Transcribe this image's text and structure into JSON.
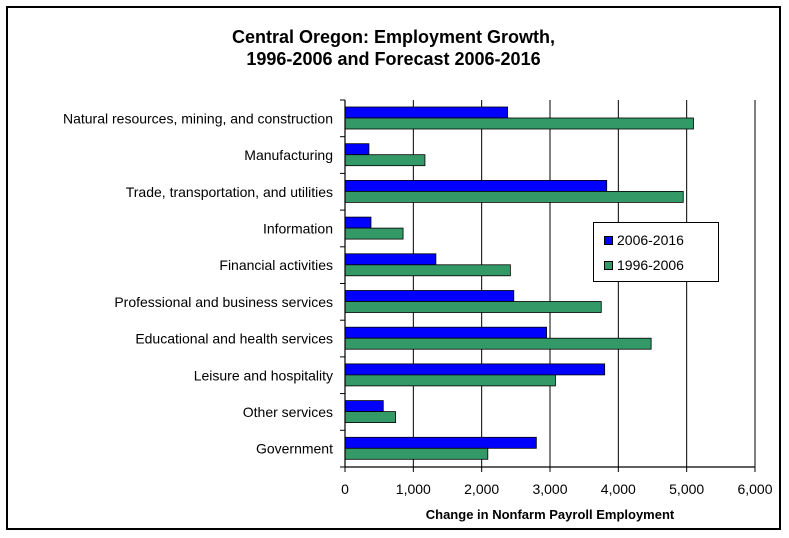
{
  "chart_data": {
    "type": "bar",
    "orientation": "horizontal",
    "title_line1": "Central Oregon:  Employment Growth,",
    "title_line2": "1996-2006 and Forecast 2006-2016",
    "xlabel": "Change in Nonfarm Payroll Employment",
    "ylabel": "",
    "xlim": [
      0,
      6000
    ],
    "xticks": [
      0,
      1000,
      2000,
      3000,
      4000,
      5000,
      6000
    ],
    "xtick_labels": [
      "0",
      "1,000",
      "2,000",
      "3,000",
      "4,000",
      "5,000",
      "6,000"
    ],
    "grid": "vertical",
    "legend_position": "right",
    "categories": [
      "Natural resources, mining, and construction",
      "Manufacturing",
      "Trade, transportation, and utilities",
      "Information",
      "Financial activities",
      "Professional and business services",
      "Educational and health services",
      "Leisure and hospitality",
      "Other services",
      "Government"
    ],
    "series": [
      {
        "name": "2006-2016",
        "color": "#0000ff",
        "values": [
          2380,
          350,
          3830,
          380,
          1330,
          2470,
          2950,
          3800,
          560,
          2800
        ]
      },
      {
        "name": "1996-2006",
        "color": "#339966",
        "values": [
          5100,
          1170,
          4950,
          850,
          2420,
          3750,
          4480,
          3080,
          740,
          2090
        ]
      }
    ]
  }
}
